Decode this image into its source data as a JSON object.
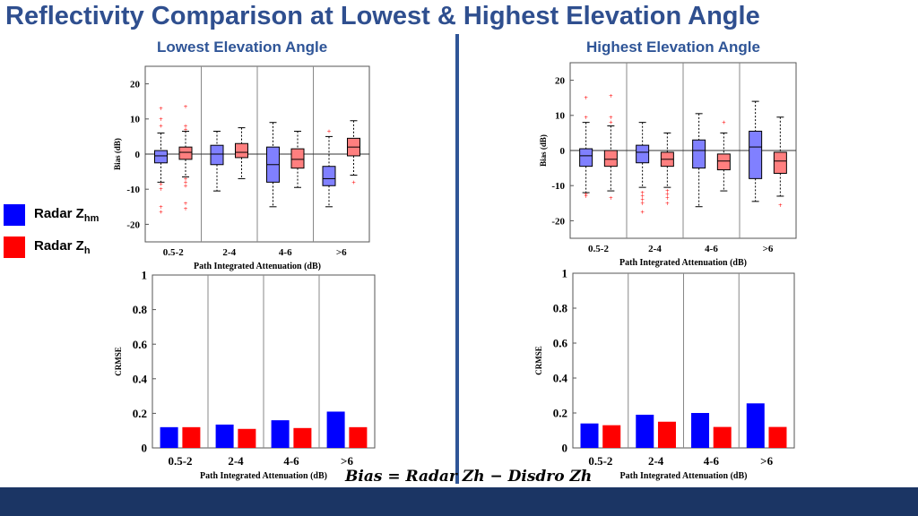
{
  "title": "Reflectivity Comparison at Lowest & Highest Elevation Angle",
  "subtitles": {
    "left": "Lowest Elevation Angle",
    "right": "Highest Elevation Angle"
  },
  "legend": [
    {
      "label": "Radar Z",
      "sub": "hm",
      "color": "#0000ff"
    },
    {
      "label": "Radar Z",
      "sub": "h",
      "color": "#ff0000"
    }
  ],
  "formula": "Bias = Radar Zh − Disdro Zh",
  "colors": {
    "blue": "#0000ff",
    "red": "#ff0000",
    "box_blue": "#8080ff",
    "box_red": "#ff7f7f",
    "header": "#2f4f8f",
    "footer": "#1b3564"
  },
  "chart_data": [
    {
      "id": "bias-lowest",
      "type": "box",
      "title": "Lowest Elevation Angle",
      "xlabel": "Path Integrated Attenuation (dB)",
      "ylabel": "Bias (dB)",
      "ylim": [
        -25,
        25
      ],
      "yticks": [
        -20,
        -10,
        0,
        10,
        20
      ],
      "categories": [
        "0.5-2",
        "2-4",
        "4-6",
        ">6"
      ],
      "series": [
        {
          "name": "Radar Zhm",
          "color": "#8080ff",
          "boxes": [
            {
              "q1": -2.5,
              "median": -0.5,
              "q3": 1.0,
              "whisker_low": -8,
              "whisker_high": 6,
              "outliers": [
                13,
                10,
                8,
                -8.5,
                -10,
                -15,
                -16.5
              ]
            },
            {
              "q1": -3.0,
              "median": 0.0,
              "q3": 2.5,
              "whisker_low": -10.5,
              "whisker_high": 6.5,
              "outliers": []
            },
            {
              "q1": -8.0,
              "median": -3.0,
              "q3": 2.0,
              "whisker_low": -15,
              "whisker_high": 9,
              "outliers": []
            },
            {
              "q1": -9.0,
              "median": -7.0,
              "q3": -3.5,
              "whisker_low": -15,
              "whisker_high": 5,
              "outliers": [
                6.5
              ]
            }
          ]
        },
        {
          "name": "Radar Zh",
          "color": "#ff7f7f",
          "boxes": [
            {
              "q1": -1.5,
              "median": 0.5,
              "q3": 2.0,
              "whisker_low": -6.5,
              "whisker_high": 6.5,
              "outliers": [
                13.5,
                8,
                7,
                -7,
                -8,
                -9,
                -14,
                -15.5
              ]
            },
            {
              "q1": -1.0,
              "median": 0.5,
              "q3": 3.0,
              "whisker_low": -7,
              "whisker_high": 7.5,
              "outliers": []
            },
            {
              "q1": -4.0,
              "median": -1.5,
              "q3": 1.5,
              "whisker_low": -9.5,
              "whisker_high": 6.5,
              "outliers": []
            },
            {
              "q1": -0.5,
              "median": 2.0,
              "q3": 4.5,
              "whisker_low": -6,
              "whisker_high": 9.5,
              "outliers": [
                -8
              ]
            }
          ]
        }
      ]
    },
    {
      "id": "bias-highest",
      "type": "box",
      "title": "Highest Elevation Angle",
      "xlabel": "Path Integrated Attenuation (dB)",
      "ylabel": "Bias (dB)",
      "ylim": [
        -25,
        25
      ],
      "yticks": [
        -20,
        -10,
        0,
        10,
        20
      ],
      "categories": [
        "0.5-2",
        "2-4",
        "4-6",
        ">6"
      ],
      "series": [
        {
          "name": "Radar Zhm",
          "color": "#8080ff",
          "boxes": [
            {
              "q1": -4.5,
              "median": -1.5,
              "q3": 0.5,
              "whisker_low": -12,
              "whisker_high": 8,
              "outliers": [
                15,
                9.5,
                -12.5,
                -13
              ]
            },
            {
              "q1": -3.5,
              "median": -0.5,
              "q3": 1.5,
              "whisker_low": -10.5,
              "whisker_high": 8,
              "outliers": [
                -12,
                -13,
                -14,
                -15,
                -17.5
              ]
            },
            {
              "q1": -5.0,
              "median": 0.0,
              "q3": 3.0,
              "whisker_low": -16,
              "whisker_high": 10.5,
              "outliers": []
            },
            {
              "q1": -8.0,
              "median": 1.0,
              "q3": 5.5,
              "whisker_low": -14.5,
              "whisker_high": 14,
              "outliers": []
            }
          ]
        },
        {
          "name": "Radar Zh",
          "color": "#ff7f7f",
          "boxes": [
            {
              "q1": -4.5,
              "median": -2.5,
              "q3": 0.0,
              "whisker_low": -11.5,
              "whisker_high": 7,
              "outliers": [
                15.5,
                9.5,
                8,
                -13.5
              ]
            },
            {
              "q1": -4.5,
              "median": -2.5,
              "q3": -0.5,
              "whisker_low": -10.5,
              "whisker_high": 5,
              "outliers": [
                -11.5,
                -12.5,
                -13.5,
                -15
              ]
            },
            {
              "q1": -5.5,
              "median": -3.0,
              "q3": -1.0,
              "whisker_low": -11.5,
              "whisker_high": 5,
              "outliers": [
                8
              ]
            },
            {
              "q1": -6.5,
              "median": -3.0,
              "q3": -0.5,
              "whisker_low": -13,
              "whisker_high": 9.5,
              "outliers": [
                -15.5
              ]
            }
          ]
        }
      ]
    },
    {
      "id": "crmse-lowest",
      "type": "bar",
      "xlabel": "Path Integrated Attenuation (dB)",
      "ylabel": "CRMSE",
      "ylim": [
        0,
        1
      ],
      "yticks": [
        0,
        0.2,
        0.4,
        0.6,
        0.8,
        1
      ],
      "ytick_labels": [
        "0",
        "0.2",
        "0.4",
        "0.6",
        "0.8",
        "1"
      ],
      "categories": [
        "0.5-2",
        "2-4",
        "4-6",
        ">6"
      ],
      "series": [
        {
          "name": "Radar Zhm",
          "color": "#0000ff",
          "values": [
            0.12,
            0.135,
            0.16,
            0.21
          ]
        },
        {
          "name": "Radar Zh",
          "color": "#ff0000",
          "values": [
            0.12,
            0.11,
            0.115,
            0.12
          ]
        }
      ]
    },
    {
      "id": "crmse-highest",
      "type": "bar",
      "xlabel": "Path Integrated Attenuation (dB)",
      "ylabel": "CRMSE",
      "ylim": [
        0,
        1
      ],
      "yticks": [
        0,
        0.2,
        0.4,
        0.6,
        0.8,
        1
      ],
      "ytick_labels": [
        "0",
        "0.2",
        "0.4",
        "0.6",
        "0.8",
        "1"
      ],
      "categories": [
        "0.5-2",
        "2-4",
        "4-6",
        ">6"
      ],
      "series": [
        {
          "name": "Radar Zhm",
          "color": "#0000ff",
          "values": [
            0.14,
            0.19,
            0.2,
            0.255
          ]
        },
        {
          "name": "Radar Zh",
          "color": "#ff0000",
          "values": [
            0.13,
            0.15,
            0.12,
            0.12
          ]
        }
      ]
    }
  ]
}
